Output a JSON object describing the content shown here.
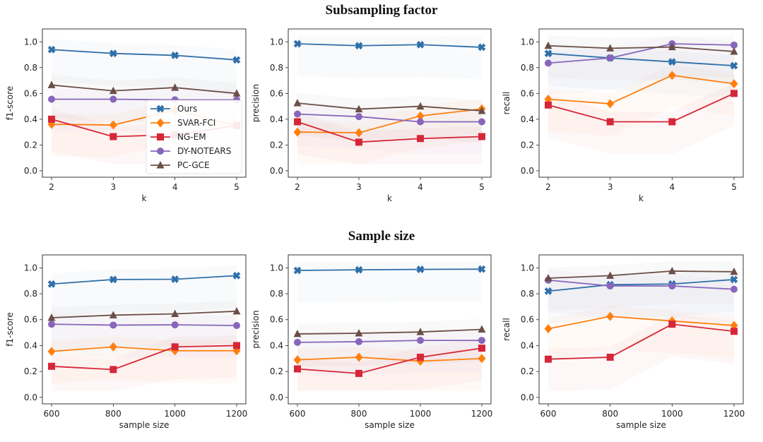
{
  "titles": {
    "top": "Subsampling factor",
    "bottom": "Sample size"
  },
  "legend": {
    "placement": "lower-right of first subplot",
    "entries": [
      {
        "name": "Ours",
        "color": "#2f6fa8",
        "marker": "x-filled"
      },
      {
        "name": "SVAR-FCI",
        "color": "#ff7f0e",
        "marker": "diamond"
      },
      {
        "name": "NG-EM",
        "color": "#d62738",
        "marker": "square"
      },
      {
        "name": "DY-NOTEARS",
        "color": "#8866bb",
        "marker": "circle"
      },
      {
        "name": "PC-GCE",
        "color": "#6b4f47",
        "marker": "triangle"
      }
    ]
  },
  "chart_data": [
    {
      "type": "line",
      "row": "top",
      "xlabel": "k",
      "ylabel": "f1-score",
      "x": [
        2,
        3,
        4,
        5
      ],
      "xticks": [
        "2",
        "3",
        "4",
        "5"
      ],
      "ylim": [
        -0.05,
        1.1
      ],
      "yticks": [
        "0.0",
        "0.2",
        "0.4",
        "0.6",
        "0.8",
        "1.0"
      ],
      "grid": false,
      "series": [
        {
          "name": "Ours",
          "values": [
            0.94,
            0.91,
            0.895,
            0.86
          ]
        },
        {
          "name": "SVAR-FCI",
          "values": [
            0.36,
            0.355,
            0.47,
            0.35
          ]
        },
        {
          "name": "NG-EM",
          "values": [
            0.4,
            0.265,
            0.28,
            0.35
          ]
        },
        {
          "name": "DY-NOTEARS",
          "values": [
            0.555,
            0.555,
            0.55,
            0.55
          ]
        },
        {
          "name": "PC-GCE",
          "values": [
            0.665,
            0.62,
            0.645,
            0.6
          ]
        }
      ]
    },
    {
      "type": "line",
      "row": "top",
      "xlabel": "k",
      "ylabel": "precision",
      "x": [
        2,
        3,
        4,
        5
      ],
      "xticks": [
        "2",
        "3",
        "4",
        "5"
      ],
      "ylim": [
        -0.05,
        1.1
      ],
      "yticks": [
        "0.0",
        "0.2",
        "0.4",
        "0.6",
        "0.8",
        "1.0"
      ],
      "grid": false,
      "series": [
        {
          "name": "Ours",
          "values": [
            0.985,
            0.97,
            0.978,
            0.958
          ]
        },
        {
          "name": "SVAR-FCI",
          "values": [
            0.3,
            0.295,
            0.425,
            0.48
          ]
        },
        {
          "name": "NG-EM",
          "values": [
            0.38,
            0.222,
            0.25,
            0.265
          ]
        },
        {
          "name": "DY-NOTEARS",
          "values": [
            0.44,
            0.42,
            0.38,
            0.38
          ]
        },
        {
          "name": "PC-GCE",
          "values": [
            0.525,
            0.478,
            0.5,
            0.465
          ]
        }
      ]
    },
    {
      "type": "line",
      "row": "top",
      "xlabel": "k",
      "ylabel": "recall",
      "x": [
        2,
        3,
        4,
        5
      ],
      "xticks": [
        "2",
        "3",
        "4",
        "5"
      ],
      "ylim": [
        -0.05,
        1.1
      ],
      "yticks": [
        "0.0",
        "0.2",
        "0.4",
        "0.6",
        "0.8",
        "1.0"
      ],
      "grid": false,
      "series": [
        {
          "name": "Ours",
          "values": [
            0.91,
            0.875,
            0.845,
            0.815
          ]
        },
        {
          "name": "SVAR-FCI",
          "values": [
            0.555,
            0.52,
            0.74,
            0.675
          ]
        },
        {
          "name": "NG-EM",
          "values": [
            0.51,
            0.38,
            0.38,
            0.6
          ]
        },
        {
          "name": "DY-NOTEARS",
          "values": [
            0.835,
            0.875,
            0.985,
            0.975
          ]
        },
        {
          "name": "PC-GCE",
          "values": [
            0.97,
            0.95,
            0.96,
            0.925
          ]
        }
      ]
    },
    {
      "type": "line",
      "row": "bottom",
      "xlabel": "sample size",
      "ylabel": "f1-score",
      "x": [
        600,
        800,
        1000,
        1200
      ],
      "xticks": [
        "600",
        "800",
        "1000",
        "1200"
      ],
      "ylim": [
        -0.05,
        1.1
      ],
      "yticks": [
        "0.0",
        "0.2",
        "0.4",
        "0.6",
        "0.8",
        "1.0"
      ],
      "grid": false,
      "series": [
        {
          "name": "Ours",
          "values": [
            0.875,
            0.91,
            0.912,
            0.94
          ]
        },
        {
          "name": "SVAR-FCI",
          "values": [
            0.355,
            0.39,
            0.36,
            0.36
          ]
        },
        {
          "name": "NG-EM",
          "values": [
            0.24,
            0.215,
            0.39,
            0.4
          ]
        },
        {
          "name": "DY-NOTEARS",
          "values": [
            0.565,
            0.558,
            0.56,
            0.555
          ]
        },
        {
          "name": "PC-GCE",
          "values": [
            0.615,
            0.635,
            0.645,
            0.665
          ]
        }
      ]
    },
    {
      "type": "line",
      "row": "bottom",
      "xlabel": "sample size",
      "ylabel": "precision",
      "x": [
        600,
        800,
        1000,
        1200
      ],
      "xticks": [
        "600",
        "800",
        "1000",
        "1200"
      ],
      "ylim": [
        -0.05,
        1.1
      ],
      "yticks": [
        "0.0",
        "0.2",
        "0.4",
        "0.6",
        "0.8",
        "1.0"
      ],
      "grid": false,
      "series": [
        {
          "name": "Ours",
          "values": [
            0.98,
            0.985,
            0.988,
            0.99
          ]
        },
        {
          "name": "SVAR-FCI",
          "values": [
            0.29,
            0.31,
            0.28,
            0.3
          ]
        },
        {
          "name": "NG-EM",
          "values": [
            0.22,
            0.185,
            0.31,
            0.38
          ]
        },
        {
          "name": "DY-NOTEARS",
          "values": [
            0.425,
            0.43,
            0.44,
            0.44
          ]
        },
        {
          "name": "PC-GCE",
          "values": [
            0.49,
            0.495,
            0.505,
            0.525
          ]
        }
      ]
    },
    {
      "type": "line",
      "row": "bottom",
      "xlabel": "sample size",
      "ylabel": "recall",
      "x": [
        600,
        800,
        1000,
        1200
      ],
      "xticks": [
        "600",
        "800",
        "1000",
        "1200"
      ],
      "ylim": [
        -0.05,
        1.1
      ],
      "yticks": [
        "0.0",
        "0.2",
        "0.4",
        "0.6",
        "0.8",
        "1.0"
      ],
      "grid": false,
      "series": [
        {
          "name": "Ours",
          "values": [
            0.82,
            0.87,
            0.875,
            0.91
          ]
        },
        {
          "name": "SVAR-FCI",
          "values": [
            0.53,
            0.625,
            0.59,
            0.555
          ]
        },
        {
          "name": "NG-EM",
          "values": [
            0.295,
            0.31,
            0.565,
            0.51
          ]
        },
        {
          "name": "DY-NOTEARS",
          "values": [
            0.905,
            0.86,
            0.86,
            0.835
          ]
        },
        {
          "name": "PC-GCE",
          "values": [
            0.92,
            0.94,
            0.975,
            0.97
          ]
        }
      ]
    }
  ]
}
